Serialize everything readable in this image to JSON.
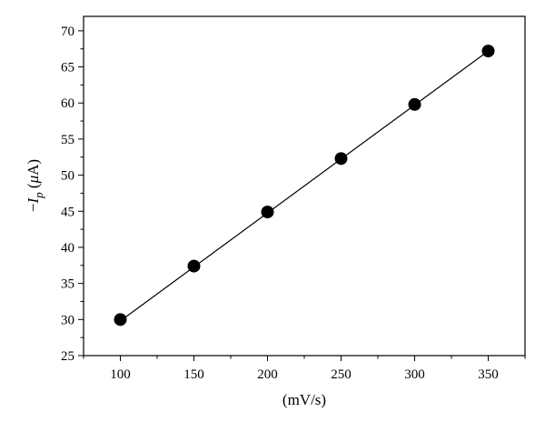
{
  "chart_data": {
    "type": "scatter",
    "x": [
      100,
      150,
      200,
      250,
      300,
      350
    ],
    "y": [
      30.0,
      37.4,
      44.9,
      52.3,
      59.8,
      67.2
    ],
    "fit_line": {
      "x": [
        100,
        350
      ],
      "y": [
        29.8,
        67.2
      ]
    },
    "xlabel": "(mV/s)",
    "ylabel": {
      "prefix": "−",
      "symbol": "I",
      "subscript": "p",
      "unit_open": " (",
      "mu": "μ",
      "unit_rest": "A)"
    },
    "xlim": [
      75,
      375
    ],
    "ylim": [
      25,
      72
    ],
    "xticks": [
      100,
      150,
      200,
      250,
      300,
      350
    ],
    "yticks": [
      25,
      30,
      35,
      40,
      45,
      50,
      55,
      60,
      65,
      70
    ],
    "grid": false,
    "legend": "none"
  }
}
